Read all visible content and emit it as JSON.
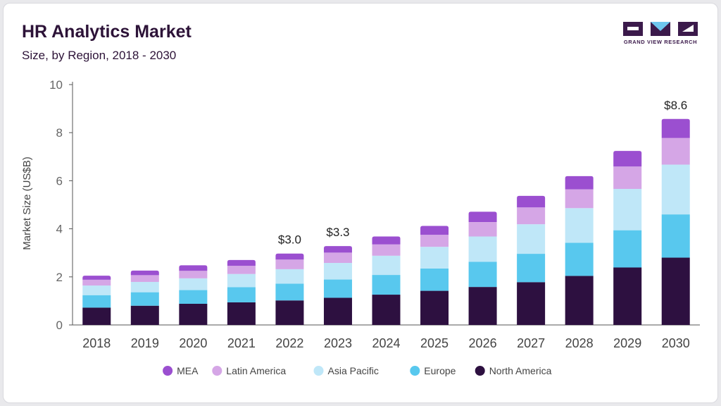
{
  "header": {
    "title": "HR Analytics Market",
    "subtitle": "Size, by Region, 2018 - 2030"
  },
  "logo": {
    "text": "GRAND VIEW RESEARCH",
    "color": "#3b1a4b",
    "accent": "#6ec6ee"
  },
  "chart_data": {
    "type": "bar",
    "stacked": true,
    "categories": [
      "2018",
      "2019",
      "2020",
      "2021",
      "2022",
      "2023",
      "2024",
      "2025",
      "2026",
      "2027",
      "2028",
      "2029",
      "2030"
    ],
    "ylabel": "Market Size (US$B)",
    "xlabel": "",
    "ylim": [
      0,
      10
    ],
    "yticks": [
      0,
      2,
      4,
      6,
      8,
      10
    ],
    "grid": false,
    "legend_position": "bottom",
    "series": [
      {
        "name": "North America",
        "color": "#2d1040",
        "values": [
          0.72,
          0.8,
          0.88,
          0.94,
          1.02,
          1.13,
          1.26,
          1.42,
          1.58,
          1.78,
          2.04,
          2.39,
          2.8
        ]
      },
      {
        "name": "Europe",
        "color": "#58c8ee",
        "values": [
          0.52,
          0.56,
          0.57,
          0.63,
          0.7,
          0.76,
          0.82,
          0.93,
          1.05,
          1.18,
          1.38,
          1.55,
          1.8
        ]
      },
      {
        "name": "Asia Pacific",
        "color": "#bfe7f8",
        "values": [
          0.4,
          0.43,
          0.49,
          0.55,
          0.6,
          0.69,
          0.8,
          0.9,
          1.05,
          1.23,
          1.44,
          1.72,
          2.07
        ]
      },
      {
        "name": "Latin America",
        "color": "#d5a6e6",
        "values": [
          0.24,
          0.28,
          0.31,
          0.34,
          0.4,
          0.43,
          0.47,
          0.5,
          0.6,
          0.7,
          0.78,
          0.93,
          1.11
        ]
      },
      {
        "name": "MEA",
        "color": "#9b4fd0",
        "values": [
          0.17,
          0.19,
          0.23,
          0.24,
          0.25,
          0.27,
          0.33,
          0.37,
          0.43,
          0.48,
          0.55,
          0.65,
          0.79
        ]
      }
    ],
    "data_labels": [
      {
        "category": "2022",
        "text": "$3.0"
      },
      {
        "category": "2023",
        "text": "$3.3"
      },
      {
        "category": "2030",
        "text": "$8.6"
      }
    ]
  }
}
